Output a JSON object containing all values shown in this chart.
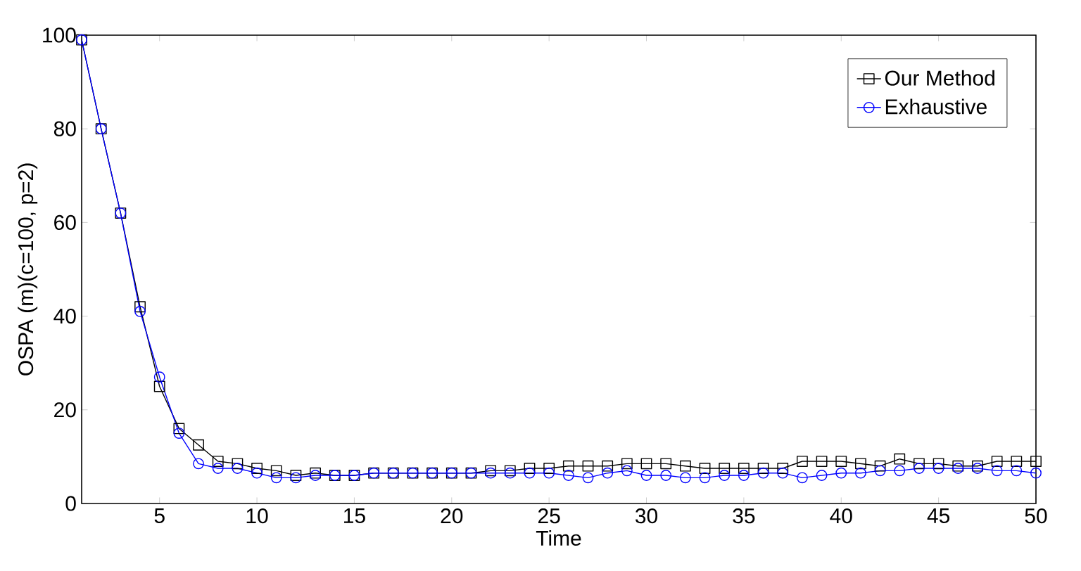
{
  "chart_data": {
    "type": "line",
    "xlabel": "Time",
    "ylabel": "OSPA (m)(c=100, p=2)",
    "x": [
      1,
      2,
      3,
      4,
      5,
      6,
      7,
      8,
      9,
      10,
      11,
      12,
      13,
      14,
      15,
      16,
      17,
      18,
      19,
      20,
      21,
      22,
      23,
      24,
      25,
      26,
      27,
      28,
      29,
      30,
      31,
      32,
      33,
      34,
      35,
      36,
      37,
      38,
      39,
      40,
      41,
      42,
      43,
      44,
      45,
      46,
      47,
      48,
      49,
      50
    ],
    "series": [
      {
        "name": "Our Method",
        "color": "#000000",
        "marker": "square",
        "values": [
          99,
          80,
          62,
          42,
          25,
          16,
          12.5,
          9,
          8.5,
          7.5,
          7,
          6,
          6.5,
          6,
          6,
          6.5,
          6.5,
          6.5,
          6.5,
          6.5,
          6.5,
          7,
          7,
          7.5,
          7.5,
          8,
          8,
          8,
          8.5,
          8.5,
          8.5,
          8,
          7.5,
          7.5,
          7.5,
          7.5,
          7.5,
          9,
          9,
          9,
          8.5,
          8,
          9.5,
          8.5,
          8.5,
          8,
          8,
          9,
          9,
          9
        ]
      },
      {
        "name": "Exhaustive",
        "color": "#0000ff",
        "marker": "circle",
        "values": [
          99,
          80,
          62,
          41,
          27,
          15,
          8.5,
          7.5,
          7.5,
          6.5,
          5.5,
          5.5,
          6,
          6,
          6,
          6.5,
          6.5,
          6.5,
          6.5,
          6.5,
          6.5,
          6.5,
          6.5,
          6.5,
          6.5,
          6,
          5.5,
          6.5,
          7,
          6,
          6,
          5.5,
          5.5,
          6,
          6,
          6.5,
          6.5,
          5.5,
          6,
          6.5,
          6.5,
          7,
          7,
          7.5,
          7.5,
          7.5,
          7.5,
          7,
          7,
          6.5
        ]
      }
    ],
    "xlim": [
      1,
      50
    ],
    "ylim": [
      0,
      100
    ],
    "xticks": [
      5,
      10,
      15,
      20,
      25,
      30,
      35,
      40,
      45,
      50
    ],
    "yticks": [
      0,
      20,
      40,
      60,
      80,
      100
    ],
    "legend": "top right",
    "grid": false
  }
}
